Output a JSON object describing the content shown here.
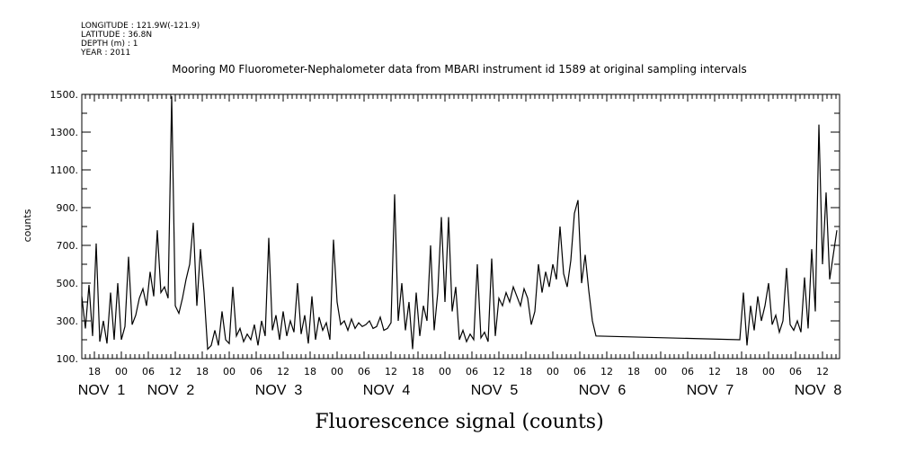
{
  "header": {
    "lines": [
      "LONGITUDE : 121.9W(-121.9)",
      "LATITUDE : 36.8N",
      "DEPTH (m) : 1",
      "YEAR : 2011"
    ]
  },
  "chart_data": {
    "type": "line",
    "title": "Mooring M0 Fluorometer-Nephalometer data from MBARI instrument id 1589 at original sampling intervals",
    "xlabel": "Fluorescence signal (counts)",
    "ylabel": "counts",
    "ylim": [
      100,
      1500
    ],
    "xlim_hours_from_nov2_00": [
      -8.8,
      159.8
    ],
    "yticks": [
      100,
      300,
      500,
      700,
      900,
      1100,
      1300,
      1500
    ],
    "ytick_labels": [
      "100.",
      "300.",
      "500.",
      "700.",
      "900.",
      "1100.",
      "1300.",
      "1500."
    ],
    "xticks": [
      {
        "t": -6,
        "label": "18"
      },
      {
        "t": 0,
        "label": "00"
      },
      {
        "t": 6,
        "label": "06"
      },
      {
        "t": 12,
        "label": "12"
      },
      {
        "t": 18,
        "label": "18"
      },
      {
        "t": 24,
        "label": "00"
      },
      {
        "t": 30,
        "label": "06"
      },
      {
        "t": 36,
        "label": "12"
      },
      {
        "t": 42,
        "label": "18"
      },
      {
        "t": 48,
        "label": "00"
      },
      {
        "t": 54,
        "label": "06"
      },
      {
        "t": 60,
        "label": "12"
      },
      {
        "t": 66,
        "label": "18"
      },
      {
        "t": 72,
        "label": "00"
      },
      {
        "t": 78,
        "label": "06"
      },
      {
        "t": 84,
        "label": "12"
      },
      {
        "t": 90,
        "label": "18"
      },
      {
        "t": 96,
        "label": "00"
      },
      {
        "t": 102,
        "label": "06"
      },
      {
        "t": 108,
        "label": "12"
      },
      {
        "t": 114,
        "label": "18"
      },
      {
        "t": 120,
        "label": "00"
      },
      {
        "t": 126,
        "label": "06"
      },
      {
        "t": 132,
        "label": "12"
      },
      {
        "t": 138,
        "label": "18"
      },
      {
        "t": 144,
        "label": "00"
      },
      {
        "t": 150,
        "label": "06"
      },
      {
        "t": 156,
        "label": "12"
      }
    ],
    "date_labels": [
      {
        "t": -4.4,
        "label": "NOV  1"
      },
      {
        "t": 11,
        "label": "NOV  2"
      },
      {
        "t": 35,
        "label": "NOV  3"
      },
      {
        "t": 59,
        "label": "NOV  4"
      },
      {
        "t": 83,
        "label": "NOV  5"
      },
      {
        "t": 107,
        "label": "NOV  6"
      },
      {
        "t": 131,
        "label": "NOV  7"
      },
      {
        "t": 155,
        "label": "NOV  8"
      }
    ],
    "grid": false,
    "series": [
      {
        "name": "Fluorescence signal",
        "color": "#000000",
        "segments": [
          {
            "t_start": -8.8,
            "t_step": 0.8,
            "values": [
              430,
              260,
              490,
              220,
              710,
              190,
              300,
              180,
              450,
              200,
              500,
              200,
              270,
              640,
              280,
              330,
              420,
              470,
              380,
              560,
              430,
              780,
              450,
              480,
              420,
              1490,
              380,
              340,
              420,
              520,
              600,
              820,
              380,
              680,
              450,
              150,
              170,
              250,
              170,
              350,
              200,
              180,
              480,
              220,
              260,
              190,
              230,
              200,
              280,
              170,
              300,
              220,
              740,
              250,
              330,
              200,
              350,
              220,
              300,
              240,
              500,
              230,
              330,
              180,
              430,
              200,
              320,
              250,
              290,
              200,
              730,
              400,
              280,
              300,
              250,
              310,
              260,
              290,
              270,
              280,
              300,
              260,
              270,
              320,
              250,
              260,
              290,
              970,
              300,
              500,
              250,
              400,
              150,
              450,
              220,
              380,
              300,
              700,
              250,
              450,
              850,
              400,
              850,
              350,
              480,
              200,
              250,
              190,
              230,
              200,
              600,
              210,
              240,
              190,
              630,
              220,
              420,
              380,
              450,
              400,
              480,
              430,
              380,
              470,
              420,
              280,
              350,
              600,
              450,
              560,
              480,
              600,
              520,
              800,
              550,
              480,
              620,
              870,
              940,
              500,
              650,
              460,
              300,
              220
            ]
          },
          {
            "t_start": 137.6,
            "t_step": 0.8,
            "values": [
              200,
              450,
              170,
              380,
              250,
              430,
              300,
              380,
              500,
              280,
              330,
              240,
              300,
              580,
              280,
              250,
              300,
              240,
              530,
              260,
              680,
              350,
              1340,
              600,
              980,
              520,
              650,
              780
            ]
          }
        ]
      }
    ]
  }
}
